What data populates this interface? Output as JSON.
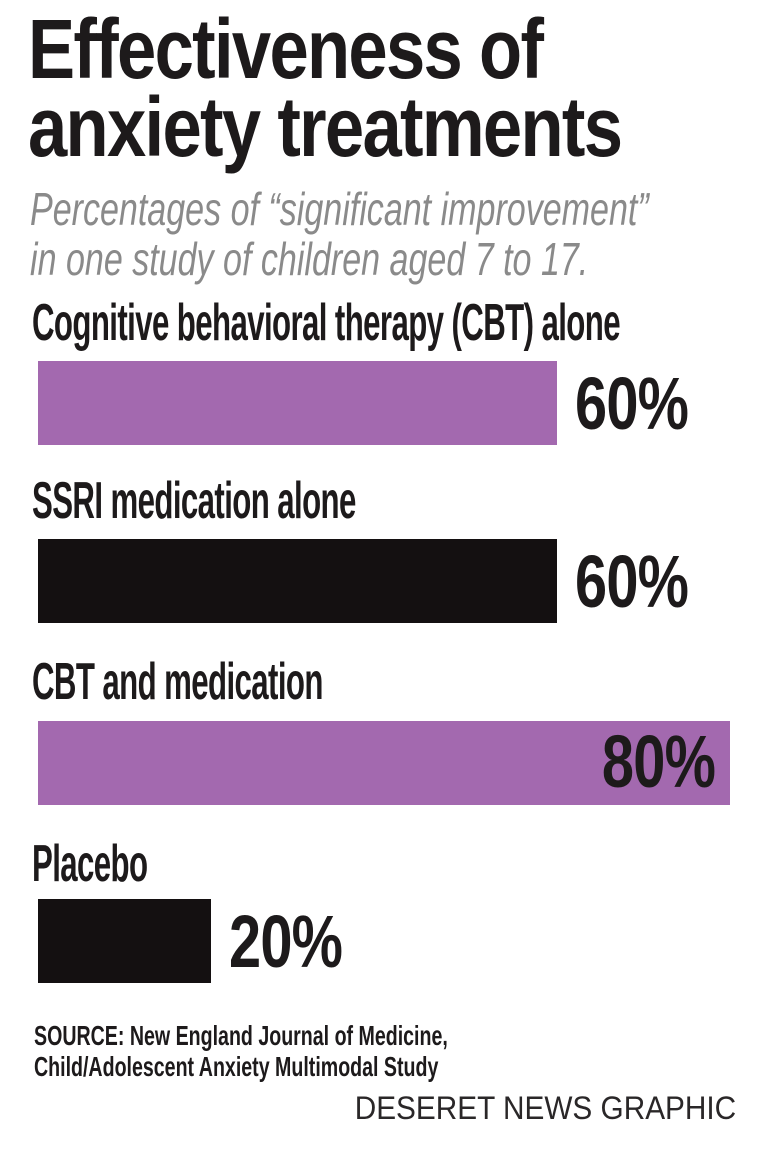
{
  "chart_data": {
    "type": "bar",
    "orientation": "horizontal",
    "title": "Effectiveness of anxiety treatments",
    "title_lines": [
      "Effectiveness of",
      "anxiety treatments"
    ],
    "subtitle": "Percentages of “significant improvement” in one study of children aged 7 to 17.",
    "subtitle_lines": [
      "Percentages of “significant improvement”",
      "in one study of children aged 7 to 17."
    ],
    "categories": [
      "Cognitive behavioral therapy (CBT) alone",
      "SSRI medication alone",
      "CBT and medication",
      "Placebo"
    ],
    "values": [
      60,
      60,
      80,
      20
    ],
    "unit": "%",
    "value_labels": [
      "60%",
      "60%",
      "80%",
      "20%"
    ],
    "value_label_position": [
      "outside",
      "outside",
      "inside",
      "outside"
    ],
    "xlim": [
      0,
      80
    ],
    "grid": false,
    "legend": false,
    "bar_colors": [
      "#a369af",
      "#141011",
      "#a369af",
      "#141011"
    ],
    "colors": {
      "purple": "#a369af",
      "black": "#141011",
      "subtitle_gray": "#8a8a8a",
      "background": "#ffffff"
    },
    "source": "SOURCE: New England Journal of Medicine, Child/Adolescent Anxiety Multimodal Study",
    "source_lines": [
      "SOURCE: New England Journal of Medicine,",
      "Child/Adolescent Anxiety Multimodal Study"
    ],
    "credit": "DESERET NEWS GRAPHIC"
  }
}
